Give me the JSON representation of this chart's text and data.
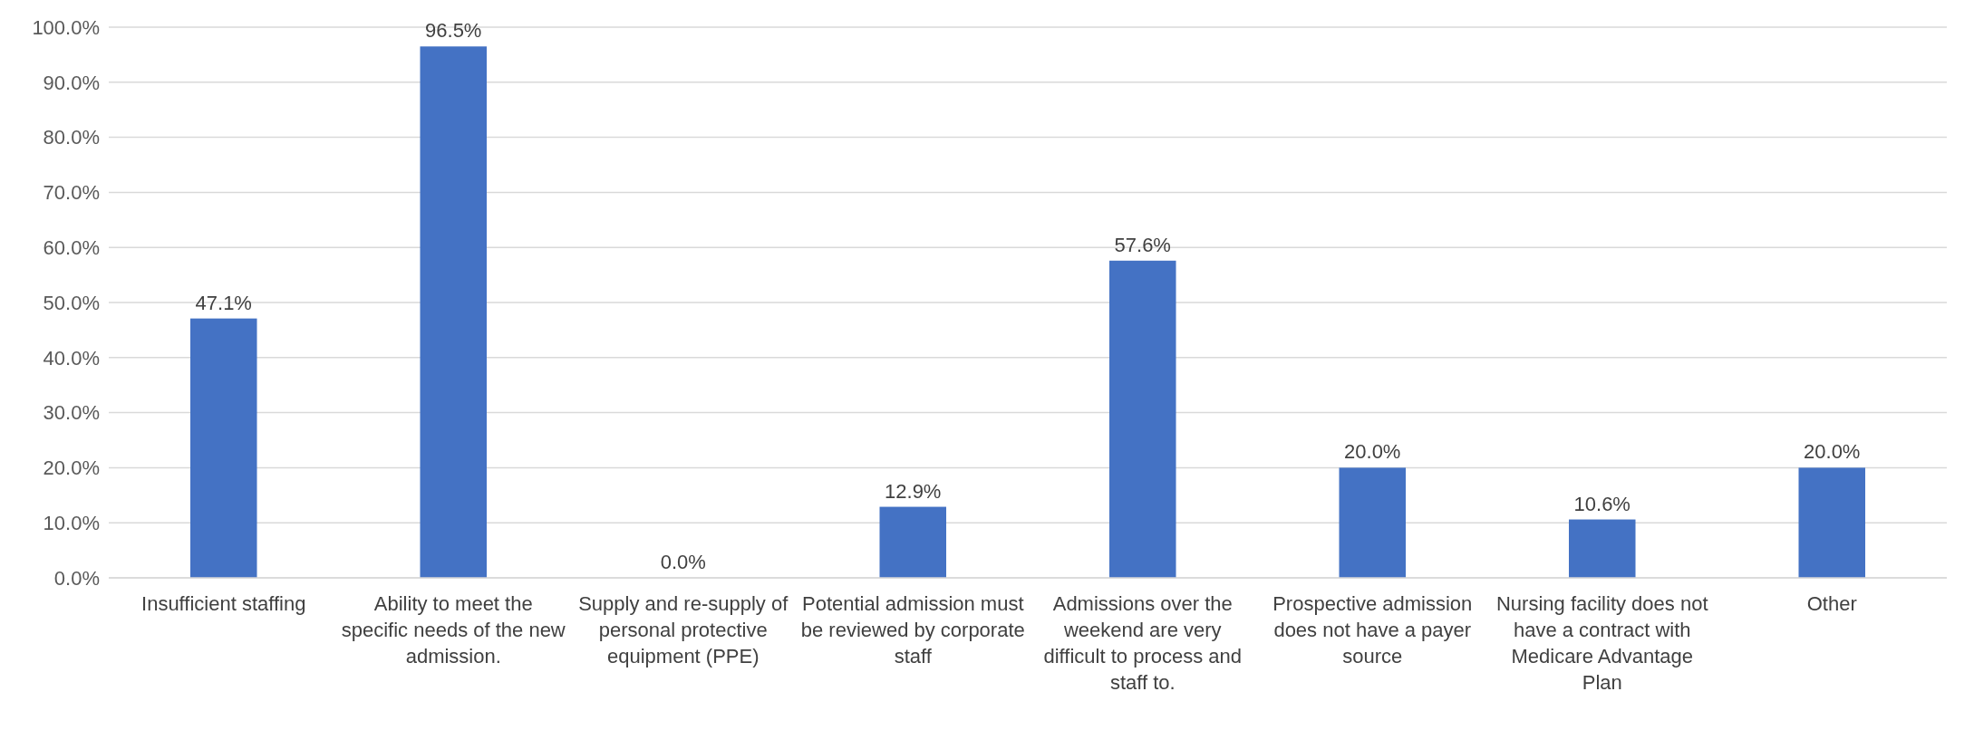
{
  "chart_data": {
    "type": "bar",
    "categories": [
      "Insufficient staffing",
      "Ability to meet the specific needs of the new admission.",
      "Supply and re-supply of personal protective equipment (PPE)",
      "Potential admission must be reviewed by corporate staff",
      "Admissions over the weekend are very difficult to process and staff to.",
      "Prospective admission does not have a payer source",
      "Nursing facility does not have a contract with Medicare Advantage Plan",
      "Other"
    ],
    "values": [
      47.1,
      96.5,
      0.0,
      12.9,
      57.6,
      20.0,
      10.6,
      20.0
    ],
    "value_labels": [
      "47.1%",
      "96.5%",
      "0.0%",
      "12.9%",
      "57.6%",
      "20.0%",
      "10.6%",
      "20.0%"
    ],
    "color": "#4472c4",
    "ylim": [
      0,
      100
    ],
    "yticks": [
      {
        "value": 0,
        "label": "0.0%"
      },
      {
        "value": 10,
        "label": "10.0%"
      },
      {
        "value": 20,
        "label": "20.0%"
      },
      {
        "value": 30,
        "label": "30.0%"
      },
      {
        "value": 40,
        "label": "40.0%"
      },
      {
        "value": 50,
        "label": "50.0%"
      },
      {
        "value": 60,
        "label": "60.0%"
      },
      {
        "value": 70,
        "label": "70.0%"
      },
      {
        "value": 80,
        "label": "80.0%"
      },
      {
        "value": 90,
        "label": "90.0%"
      },
      {
        "value": 100,
        "label": "100.0%"
      }
    ],
    "grid": "y"
  }
}
